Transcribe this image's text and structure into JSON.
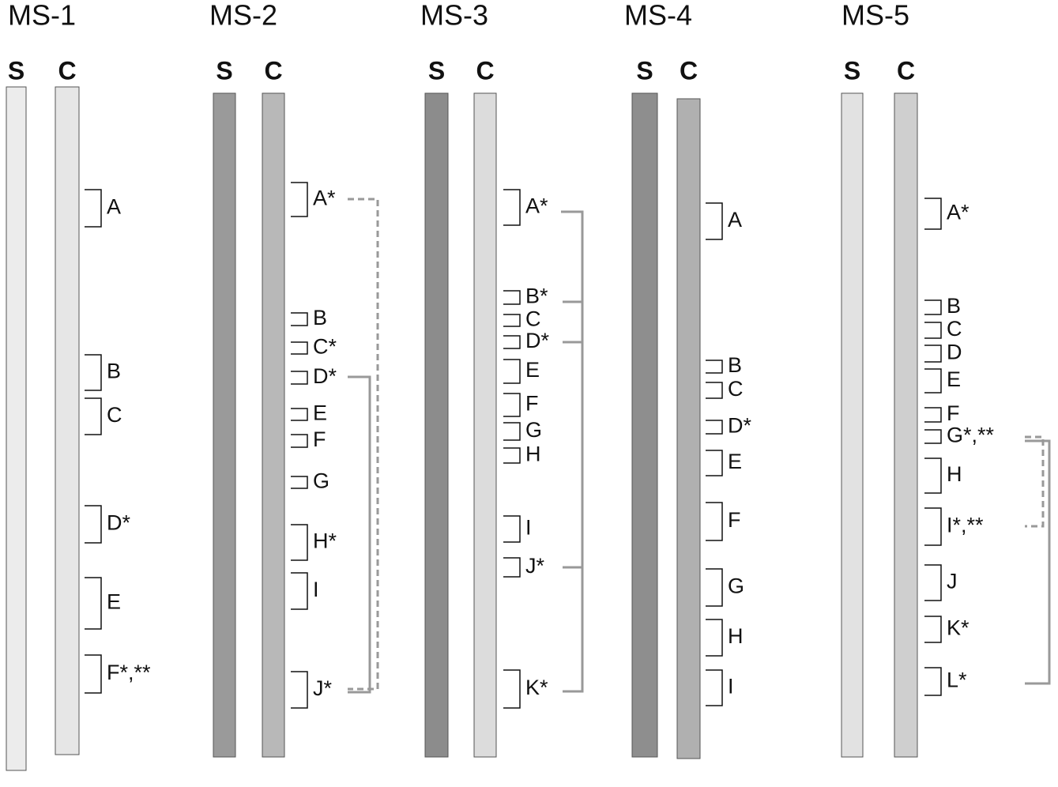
{
  "panels": [
    {
      "title": "MS-1",
      "lanes": [
        "S",
        "C"
      ],
      "bands": [
        "A",
        "B",
        "C",
        "D*",
        "E",
        "F*,**"
      ]
    },
    {
      "title": "MS-2",
      "lanes": [
        "S",
        "C"
      ],
      "bands": [
        "A*",
        "B",
        "C*",
        "D*",
        "E",
        "F",
        "G",
        "H*",
        "I",
        "J*"
      ]
    },
    {
      "title": "MS-3",
      "lanes": [
        "S",
        "C"
      ],
      "bands": [
        "A*",
        "B*",
        "C",
        "D*",
        "E",
        "F",
        "G",
        "H",
        "I",
        "J*",
        "K*"
      ]
    },
    {
      "title": "MS-4",
      "lanes": [
        "S",
        "C"
      ],
      "bands": [
        "A",
        "B",
        "C",
        "D*",
        "E",
        "F",
        "G",
        "H",
        "I"
      ]
    },
    {
      "title": "MS-5",
      "lanes": [
        "S",
        "C"
      ],
      "bands": [
        "A*",
        "B",
        "C",
        "D",
        "E",
        "F",
        "G*,**",
        "H",
        "I*,**",
        "J",
        "K*",
        "L*"
      ]
    }
  ]
}
